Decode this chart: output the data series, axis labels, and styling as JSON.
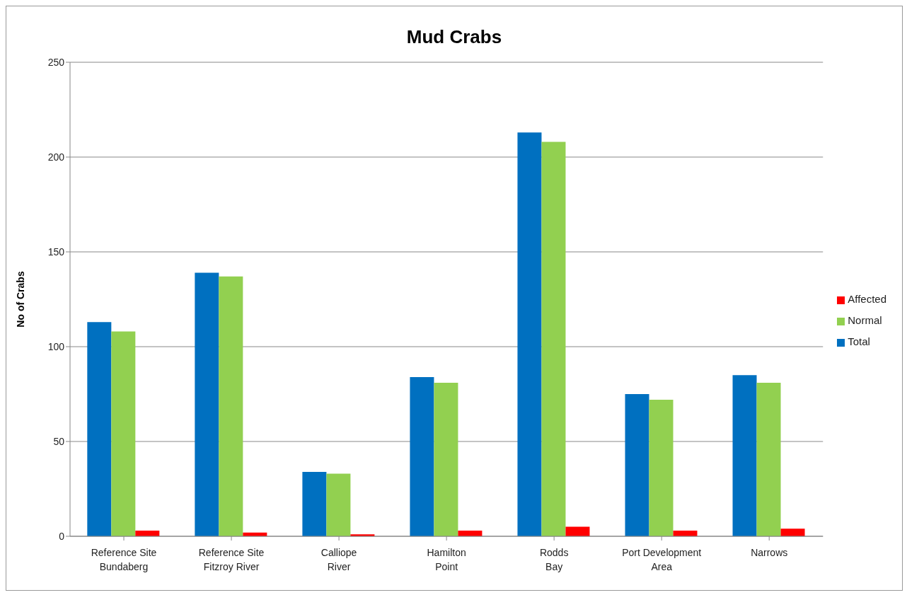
{
  "chart_data": {
    "type": "bar",
    "title": "Mud Crabs",
    "ylabel": "No of  Crabs",
    "categories": [
      "Reference Site\nBundaberg",
      "Reference Site\nFitzroy River",
      "Calliope\nRiver",
      "Hamilton\nPoint",
      "Rodds\nBay",
      "Port Development\nArea",
      "Narrows"
    ],
    "series": [
      {
        "name": "Total",
        "color": "#0070c0",
        "values": [
          113,
          139,
          34,
          84,
          213,
          75,
          85
        ]
      },
      {
        "name": "Normal",
        "color": "#92d050",
        "values": [
          108,
          137,
          33,
          81,
          208,
          72,
          81
        ]
      },
      {
        "name": "Affected",
        "color": "#ff0000",
        "values": [
          3,
          2,
          1,
          3,
          5,
          3,
          4
        ]
      }
    ],
    "ylim": [
      0,
      250
    ],
    "yticks": [
      0,
      50,
      100,
      150,
      200,
      250
    ],
    "grid": "y",
    "legend": "right"
  }
}
